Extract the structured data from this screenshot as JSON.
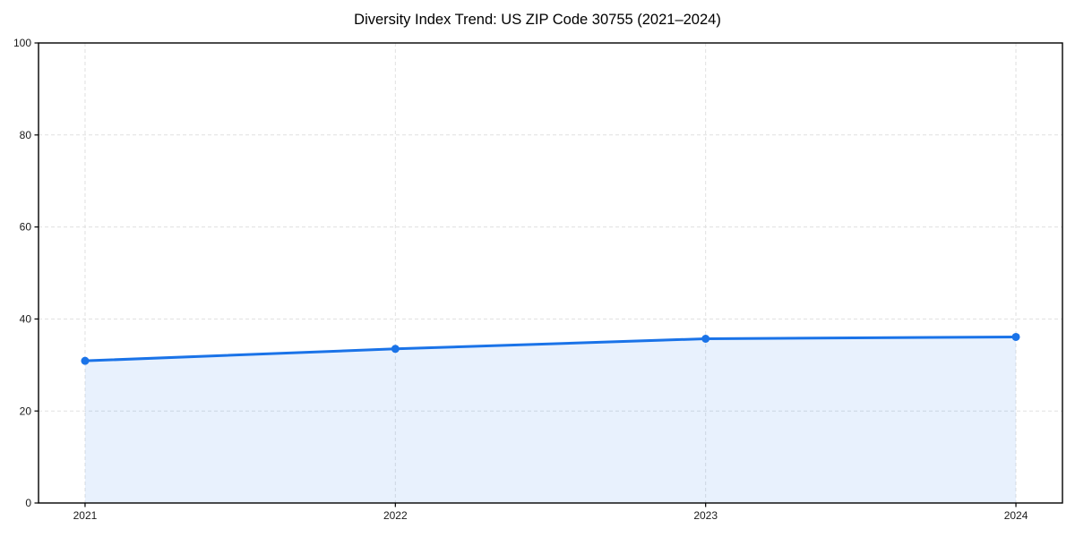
{
  "header": {
    "title": "Diversity Index Trend: US ZIP Code 30755 (2021–2024)"
  },
  "chart_data": {
    "type": "line",
    "title": "Diversity Index Trend: US ZIP Code 30755 (2021–2024)",
    "x": [
      2021,
      2022,
      2023,
      2024
    ],
    "categories": [
      "2021",
      "2022",
      "2023",
      "2024"
    ],
    "series": [
      {
        "name": "Diversity Index",
        "values": [
          30.9,
          33.5,
          35.7,
          36.1
        ]
      }
    ],
    "xlabel": "",
    "ylabel": "",
    "xlim": [
      2020.85,
      2024.15
    ],
    "ylim": [
      0,
      100
    ],
    "yticks": [
      0,
      20,
      40,
      60,
      80,
      100
    ],
    "xticks": [
      2021,
      2022,
      2023,
      2024
    ],
    "grid": true,
    "grid_style": "dashed",
    "grid_color": "#e0e0e0",
    "legend_position": "none",
    "line_color": "#1a73e8",
    "marker": "circle",
    "marker_size": 4.5,
    "area_fill": true,
    "fill_color": "#1a73e8",
    "fill_opacity": 0.1,
    "spine_color": "#000000",
    "tick_label_color": "#1a1a1a"
  }
}
